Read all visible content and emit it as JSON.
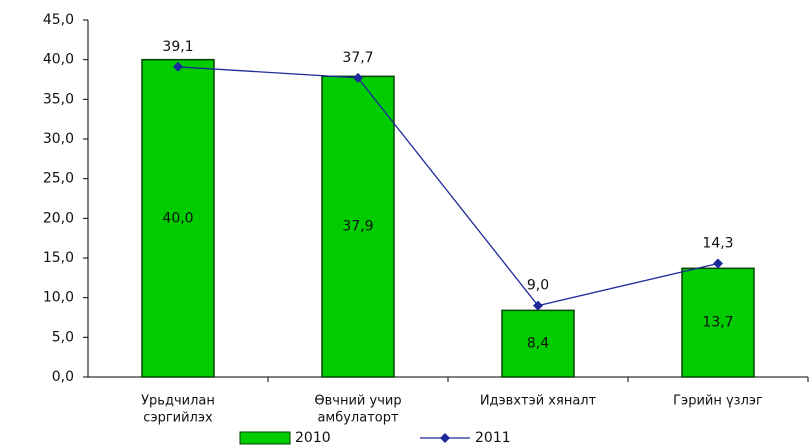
{
  "chart_data": {
    "type": "bar_line",
    "categories": [
      [
        "Урьдчилан",
        "сэргийлэх"
      ],
      [
        "Өвчний учир",
        "амбулаторт"
      ],
      [
        "Идэвхтэй хяналт"
      ],
      [
        "Гэрийн үзлэг"
      ]
    ],
    "series": [
      {
        "name": "2010",
        "type": "bar",
        "color": "#00cc00",
        "values": [
          40.0,
          37.9,
          8.4,
          13.7
        ],
        "value_labels": [
          "40,0",
          "37,9",
          "8,4",
          "13,7"
        ]
      },
      {
        "name": "2011",
        "type": "line",
        "color": "#1f2a9a",
        "values": [
          39.1,
          37.7,
          9.0,
          14.3
        ],
        "value_labels": [
          "39,1",
          "37,7",
          "9,0",
          "14,3"
        ]
      }
    ],
    "ylim": [
      0,
      45
    ],
    "yticks": [
      {
        "value": 0,
        "label": "0,0"
      },
      {
        "value": 5,
        "label": "5,0"
      },
      {
        "value": 10,
        "label": "10,0"
      },
      {
        "value": 15,
        "label": "15,0"
      },
      {
        "value": 20,
        "label": "20,0"
      },
      {
        "value": 25,
        "label": "25,0"
      },
      {
        "value": 30,
        "label": "30,0"
      },
      {
        "value": 35,
        "label": "35,0"
      },
      {
        "value": 40,
        "label": "40,0"
      },
      {
        "value": 45,
        "label": "45,0"
      }
    ],
    "legend": "bottom"
  }
}
